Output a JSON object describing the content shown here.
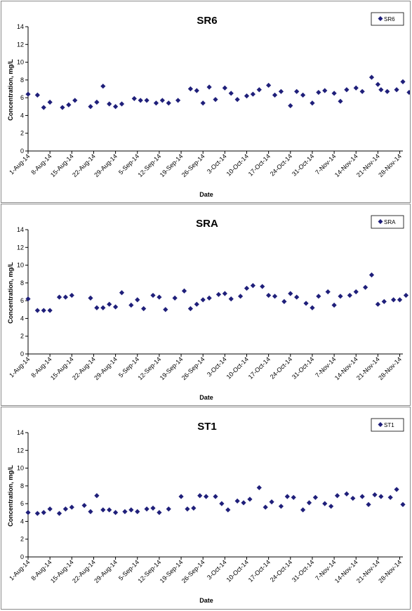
{
  "colors": {
    "marker": "#1f1f7a",
    "axis": "#000000",
    "panel_border": "#8a8a8a"
  },
  "marker_icon": "diamond-marker-icon",
  "chart_data": [
    {
      "type": "scatter",
      "title": "SR6",
      "xlabel": "Date",
      "ylabel": "Concentration, mg/L",
      "legend": {
        "placement": "top-right",
        "entries": [
          "SR6"
        ]
      },
      "grid": false,
      "ylim": [
        0,
        14
      ],
      "yticks": [
        "0",
        "2",
        "4",
        "6",
        "8",
        "10",
        "12",
        "14"
      ],
      "xlim": [
        "2014-08-01",
        "2014-11-29"
      ],
      "xticks": [
        "1-Aug-14",
        "8-Aug-14",
        "15-Aug-14",
        "22-Aug-14",
        "29-Aug-14",
        "5-Sep-14",
        "12-Sep-14",
        "19-Sep-14",
        "26-Sep-14",
        "3-Oct-14",
        "10-Oct-14",
        "17-Oct-14",
        "24-Oct-14",
        "31-Oct-14",
        "7-Nov-14",
        "14-Nov-14",
        "21-Nov-14",
        "28-Nov-14"
      ],
      "series": [
        {
          "name": "SR6",
          "points": [
            {
              "x": "2014-08-01",
              "y": 6.4
            },
            {
              "x": "2014-08-04",
              "y": 6.3
            },
            {
              "x": "2014-08-06",
              "y": 4.9
            },
            {
              "x": "2014-08-08",
              "y": 5.5
            },
            {
              "x": "2014-08-12",
              "y": 4.9
            },
            {
              "x": "2014-08-14",
              "y": 5.2
            },
            {
              "x": "2014-08-16",
              "y": 5.7
            },
            {
              "x": "2014-08-21",
              "y": 5.0
            },
            {
              "x": "2014-08-23",
              "y": 5.5
            },
            {
              "x": "2014-08-25",
              "y": 7.3
            },
            {
              "x": "2014-08-27",
              "y": 5.3
            },
            {
              "x": "2014-08-29",
              "y": 5.0
            },
            {
              "x": "2014-08-31",
              "y": 5.3
            },
            {
              "x": "2014-09-04",
              "y": 5.9
            },
            {
              "x": "2014-09-06",
              "y": 5.7
            },
            {
              "x": "2014-09-08",
              "y": 5.7
            },
            {
              "x": "2014-09-11",
              "y": 5.4
            },
            {
              "x": "2014-09-13",
              "y": 5.7
            },
            {
              "x": "2014-09-15",
              "y": 5.4
            },
            {
              "x": "2014-09-18",
              "y": 5.7
            },
            {
              "x": "2014-09-22",
              "y": 7.0
            },
            {
              "x": "2014-09-24",
              "y": 6.8
            },
            {
              "x": "2014-09-26",
              "y": 5.4
            },
            {
              "x": "2014-09-28",
              "y": 7.2
            },
            {
              "x": "2014-09-30",
              "y": 5.8
            },
            {
              "x": "2014-10-03",
              "y": 7.1
            },
            {
              "x": "2014-10-05",
              "y": 6.5
            },
            {
              "x": "2014-10-07",
              "y": 5.8
            },
            {
              "x": "2014-10-10",
              "y": 6.2
            },
            {
              "x": "2014-10-12",
              "y": 6.4
            },
            {
              "x": "2014-10-14",
              "y": 6.9
            },
            {
              "x": "2014-10-17",
              "y": 7.4
            },
            {
              "x": "2014-10-19",
              "y": 6.3
            },
            {
              "x": "2014-10-21",
              "y": 6.7
            },
            {
              "x": "2014-10-24",
              "y": 5.1
            },
            {
              "x": "2014-10-26",
              "y": 6.7
            },
            {
              "x": "2014-10-28",
              "y": 6.3
            },
            {
              "x": "2014-10-31",
              "y": 5.4
            },
            {
              "x": "2014-11-02",
              "y": 6.6
            },
            {
              "x": "2014-11-04",
              "y": 6.8
            },
            {
              "x": "2014-11-07",
              "y": 6.5
            },
            {
              "x": "2014-11-09",
              "y": 5.6
            },
            {
              "x": "2014-11-11",
              "y": 6.9
            },
            {
              "x": "2014-11-14",
              "y": 7.1
            },
            {
              "x": "2014-11-16",
              "y": 6.7
            },
            {
              "x": "2014-11-19",
              "y": 8.3
            },
            {
              "x": "2014-11-21",
              "y": 7.5
            },
            {
              "x": "2014-11-22",
              "y": 6.9
            },
            {
              "x": "2014-11-24",
              "y": 6.7
            },
            {
              "x": "2014-11-27",
              "y": 6.9
            },
            {
              "x": "2014-11-29",
              "y": 7.8
            },
            {
              "x": "2014-12-01",
              "y": 6.6
            }
          ]
        }
      ]
    },
    {
      "type": "scatter",
      "title": "SRA",
      "xlabel": "Date",
      "ylabel": "Concentration, mg/L",
      "legend": {
        "placement": "top-right",
        "entries": [
          "SRA"
        ]
      },
      "grid": false,
      "ylim": [
        0,
        14
      ],
      "yticks": [
        "0",
        "2",
        "4",
        "6",
        "8",
        "10",
        "12",
        "14"
      ],
      "xlim": [
        "2014-08-01",
        "2014-11-29"
      ],
      "xticks": [
        "1-Aug-14",
        "8-Aug-14",
        "15-Aug-14",
        "22-Aug-14",
        "29-Aug-14",
        "5-Sep-14",
        "12-Sep-14",
        "19-Sep-14",
        "26-Sep-14",
        "3-Oct-14",
        "10-Oct-14",
        "17-Oct-14",
        "24-Oct-14",
        "31-Oct-14",
        "7-Nov-14",
        "14-Nov-14",
        "21-Nov-14",
        "28-Nov-14"
      ],
      "series": [
        {
          "name": "SRA",
          "points": [
            {
              "x": "2014-08-01",
              "y": 6.2
            },
            {
              "x": "2014-08-04",
              "y": 4.9
            },
            {
              "x": "2014-08-06",
              "y": 4.9
            },
            {
              "x": "2014-08-08",
              "y": 4.9
            },
            {
              "x": "2014-08-11",
              "y": 6.4
            },
            {
              "x": "2014-08-13",
              "y": 6.4
            },
            {
              "x": "2014-08-15",
              "y": 6.6
            },
            {
              "x": "2014-08-21",
              "y": 6.3
            },
            {
              "x": "2014-08-23",
              "y": 5.2
            },
            {
              "x": "2014-08-25",
              "y": 5.2
            },
            {
              "x": "2014-08-27",
              "y": 5.6
            },
            {
              "x": "2014-08-29",
              "y": 5.3
            },
            {
              "x": "2014-08-31",
              "y": 6.9
            },
            {
              "x": "2014-09-03",
              "y": 5.5
            },
            {
              "x": "2014-09-05",
              "y": 6.1
            },
            {
              "x": "2014-09-07",
              "y": 5.1
            },
            {
              "x": "2014-09-10",
              "y": 6.6
            },
            {
              "x": "2014-09-12",
              "y": 6.4
            },
            {
              "x": "2014-09-14",
              "y": 5.0
            },
            {
              "x": "2014-09-17",
              "y": 6.3
            },
            {
              "x": "2014-09-20",
              "y": 7.1
            },
            {
              "x": "2014-09-22",
              "y": 5.1
            },
            {
              "x": "2014-09-24",
              "y": 5.6
            },
            {
              "x": "2014-09-26",
              "y": 6.1
            },
            {
              "x": "2014-09-28",
              "y": 6.3
            },
            {
              "x": "2014-10-01",
              "y": 6.7
            },
            {
              "x": "2014-10-03",
              "y": 6.8
            },
            {
              "x": "2014-10-05",
              "y": 6.2
            },
            {
              "x": "2014-10-08",
              "y": 6.5
            },
            {
              "x": "2014-10-10",
              "y": 7.4
            },
            {
              "x": "2014-10-12",
              "y": 7.7
            },
            {
              "x": "2014-10-15",
              "y": 7.6
            },
            {
              "x": "2014-10-17",
              "y": 6.6
            },
            {
              "x": "2014-10-19",
              "y": 6.5
            },
            {
              "x": "2014-10-22",
              "y": 5.9
            },
            {
              "x": "2014-10-24",
              "y": 6.8
            },
            {
              "x": "2014-10-26",
              "y": 6.4
            },
            {
              "x": "2014-10-29",
              "y": 5.7
            },
            {
              "x": "2014-10-31",
              "y": 5.2
            },
            {
              "x": "2014-11-02",
              "y": 6.5
            },
            {
              "x": "2014-11-05",
              "y": 7.0
            },
            {
              "x": "2014-11-07",
              "y": 5.5
            },
            {
              "x": "2014-11-09",
              "y": 6.5
            },
            {
              "x": "2014-11-12",
              "y": 6.6
            },
            {
              "x": "2014-11-14",
              "y": 7.0
            },
            {
              "x": "2014-11-17",
              "y": 7.5
            },
            {
              "x": "2014-11-19",
              "y": 8.9
            },
            {
              "x": "2014-11-21",
              "y": 5.6
            },
            {
              "x": "2014-11-23",
              "y": 5.9
            },
            {
              "x": "2014-11-26",
              "y": 6.1
            },
            {
              "x": "2014-11-28",
              "y": 6.1
            },
            {
              "x": "2014-11-30",
              "y": 6.6
            }
          ]
        }
      ]
    },
    {
      "type": "scatter",
      "title": "ST1",
      "xlabel": "Date",
      "ylabel": "Concentration, mg/L",
      "legend": {
        "placement": "top-right",
        "entries": [
          "ST1"
        ]
      },
      "grid": false,
      "ylim": [
        0,
        14
      ],
      "yticks": [
        "0",
        "2",
        "4",
        "6",
        "8",
        "10",
        "12",
        "14"
      ],
      "xlim": [
        "2014-08-01",
        "2014-11-29"
      ],
      "xticks": [
        "1-Aug-14",
        "8-Aug-14",
        "15-Aug-14",
        "22-Aug-14",
        "29-Aug-14",
        "5-Sep-14",
        "12-Sep-14",
        "19-Sep-14",
        "26-Sep-14",
        "3-Oct-14",
        "10-Oct-14",
        "17-Oct-14",
        "24-Oct-14",
        "31-Oct-14",
        "7-Nov-14",
        "14-Nov-14",
        "21-Nov-14",
        "28-Nov-14"
      ],
      "series": [
        {
          "name": "ST1",
          "points": [
            {
              "x": "2014-08-01",
              "y": 5.0
            },
            {
              "x": "2014-08-04",
              "y": 4.9
            },
            {
              "x": "2014-08-06",
              "y": 5.0
            },
            {
              "x": "2014-08-08",
              "y": 5.4
            },
            {
              "x": "2014-08-11",
              "y": 4.9
            },
            {
              "x": "2014-08-13",
              "y": 5.4
            },
            {
              "x": "2014-08-15",
              "y": 5.6
            },
            {
              "x": "2014-08-19",
              "y": 5.8
            },
            {
              "x": "2014-08-21",
              "y": 5.1
            },
            {
              "x": "2014-08-23",
              "y": 6.9
            },
            {
              "x": "2014-08-25",
              "y": 5.3
            },
            {
              "x": "2014-08-27",
              "y": 5.3
            },
            {
              "x": "2014-08-29",
              "y": 5.0
            },
            {
              "x": "2014-09-01",
              "y": 5.1
            },
            {
              "x": "2014-09-03",
              "y": 5.3
            },
            {
              "x": "2014-09-05",
              "y": 5.1
            },
            {
              "x": "2014-09-08",
              "y": 5.4
            },
            {
              "x": "2014-09-10",
              "y": 5.5
            },
            {
              "x": "2014-09-12",
              "y": 5.0
            },
            {
              "x": "2014-09-15",
              "y": 5.4
            },
            {
              "x": "2014-09-19",
              "y": 6.8
            },
            {
              "x": "2014-09-21",
              "y": 5.4
            },
            {
              "x": "2014-09-23",
              "y": 5.5
            },
            {
              "x": "2014-09-25",
              "y": 6.9
            },
            {
              "x": "2014-09-27",
              "y": 6.8
            },
            {
              "x": "2014-09-30",
              "y": 6.8
            },
            {
              "x": "2014-10-02",
              "y": 6.0
            },
            {
              "x": "2014-10-04",
              "y": 5.3
            },
            {
              "x": "2014-10-07",
              "y": 6.3
            },
            {
              "x": "2014-10-09",
              "y": 6.1
            },
            {
              "x": "2014-10-11",
              "y": 6.5
            },
            {
              "x": "2014-10-14",
              "y": 7.8
            },
            {
              "x": "2014-10-16",
              "y": 5.6
            },
            {
              "x": "2014-10-18",
              "y": 6.2
            },
            {
              "x": "2014-10-21",
              "y": 5.7
            },
            {
              "x": "2014-10-23",
              "y": 6.8
            },
            {
              "x": "2014-10-25",
              "y": 6.7
            },
            {
              "x": "2014-10-28",
              "y": 5.3
            },
            {
              "x": "2014-10-30",
              "y": 6.1
            },
            {
              "x": "2014-11-01",
              "y": 6.7
            },
            {
              "x": "2014-11-04",
              "y": 6.0
            },
            {
              "x": "2014-11-06",
              "y": 5.7
            },
            {
              "x": "2014-11-08",
              "y": 6.9
            },
            {
              "x": "2014-11-11",
              "y": 7.1
            },
            {
              "x": "2014-11-13",
              "y": 6.6
            },
            {
              "x": "2014-11-16",
              "y": 6.8
            },
            {
              "x": "2014-11-18",
              "y": 5.9
            },
            {
              "x": "2014-11-20",
              "y": 7.0
            },
            {
              "x": "2014-11-22",
              "y": 6.8
            },
            {
              "x": "2014-11-25",
              "y": 6.7
            },
            {
              "x": "2014-11-27",
              "y": 7.6
            },
            {
              "x": "2014-11-29",
              "y": 5.9
            }
          ]
        }
      ]
    }
  ]
}
